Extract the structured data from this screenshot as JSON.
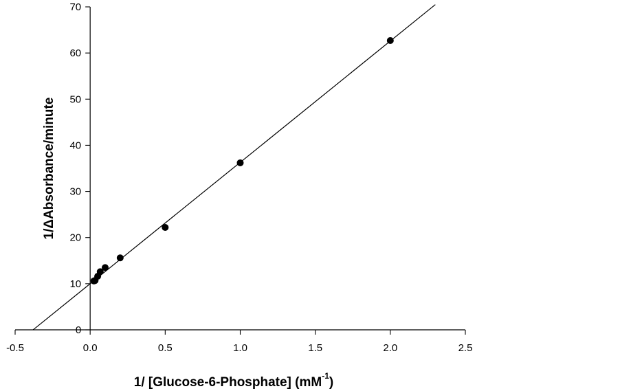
{
  "chart_data": {
    "type": "scatter",
    "title": "",
    "xlabel": "1/ [Glucose-6-Phosphate] (mM",
    "xlabel_superscript": "-1",
    "xlabel_close": ")",
    "ylabel": "1/ΔAbsorbance/minute",
    "xlim": [
      -0.5,
      2.5
    ],
    "ylim": [
      0,
      70
    ],
    "x_ticks": [
      -0.5,
      0.0,
      0.5,
      1.0,
      1.5,
      2.0,
      2.5
    ],
    "x_tick_labels": [
      "-0.5",
      "0.0",
      "0.5",
      "1.0",
      "1.5",
      "2.0",
      "2.5"
    ],
    "y_ticks": [
      0,
      10,
      20,
      30,
      40,
      50,
      60,
      70
    ],
    "y_tick_labels": [
      "0",
      "10",
      "20",
      "30",
      "40",
      "50",
      "60",
      "70"
    ],
    "grid": false,
    "legend": false,
    "series": [
      {
        "x": [
          0.025,
          0.033,
          0.05,
          0.067,
          0.1,
          0.2,
          0.5,
          1.0,
          2.0
        ],
        "y": [
          10.6,
          10.7,
          11.6,
          12.6,
          13.5,
          15.6,
          22.2,
          36.2,
          62.7
        ],
        "marker": "circle",
        "color": "#000000"
      }
    ],
    "fit_line": {
      "type": "linear",
      "x_start": -0.38,
      "x_end": 2.3,
      "slope": 26.3,
      "intercept": 10.0,
      "color": "#000000"
    }
  }
}
